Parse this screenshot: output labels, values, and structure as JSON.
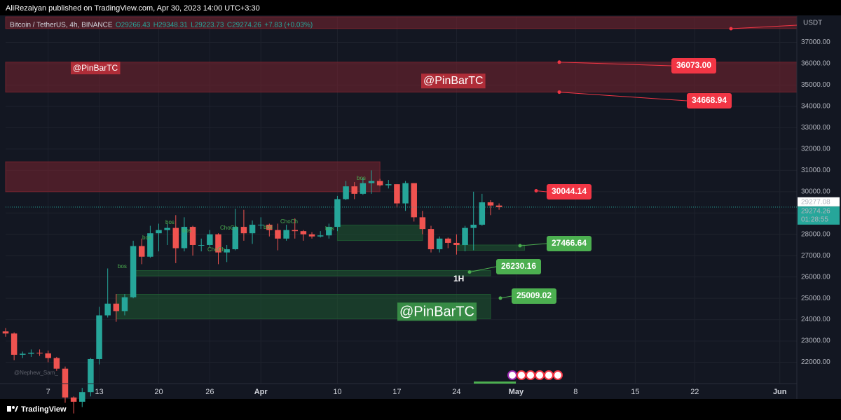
{
  "chart_data": {
    "type": "candlestick",
    "published": "AliRezaiyan published on TradingView.com, Apr 30, 2023 14:00 UTC+3:30",
    "symbol": "Bitcoin / TetherUS, 4h, BINANCE",
    "ohlc_text": [
      "O29266.43",
      "H29348.31",
      "L29223.73",
      "C29274.26",
      "+7.83 (+0.03%)"
    ],
    "currency": "USDT",
    "brand": "TradingView",
    "author_mark": "@Nephew_Sam_",
    "watermarks": [
      "@PinBarTC",
      "@PinBarTC",
      "@PinBarTC"
    ],
    "timeframe_note": "1H",
    "structure_labels": [
      "bos",
      "bos",
      "bos",
      "bos",
      "ChoCh",
      "ChoCh",
      "ChoCh",
      "bos",
      "bos",
      "bos"
    ],
    "up_color": "#26a69a",
    "down_color": "#ef5350",
    "grid": true,
    "xlim": [
      "2023-03-02",
      "2023-06-03"
    ],
    "ylim": [
      21000,
      38200
    ],
    "xticks": [
      {
        "value": "2023-03-07",
        "label": "7"
      },
      {
        "value": "2023-03-13",
        "label": "13"
      },
      {
        "value": "2023-03-20",
        "label": "20"
      },
      {
        "value": "2023-03-26",
        "label": "26"
      },
      {
        "value": "2023-04-01",
        "label": "Apr"
      },
      {
        "value": "2023-04-10",
        "label": "10"
      },
      {
        "value": "2023-04-17",
        "label": "17"
      },
      {
        "value": "2023-04-24",
        "label": "24"
      },
      {
        "value": "2023-05-01",
        "label": "May"
      },
      {
        "value": "2023-05-08",
        "label": "8"
      },
      {
        "value": "2023-05-15",
        "label": "15"
      },
      {
        "value": "2023-05-22",
        "label": "22"
      },
      {
        "value": "2023-06-01",
        "label": "Jun"
      }
    ],
    "yticks": [
      {
        "value": 22000,
        "label": "22000.00"
      },
      {
        "value": 23000,
        "label": "23000.00"
      },
      {
        "value": 24000,
        "label": "24000.00"
      },
      {
        "value": 25000,
        "label": "25000.00"
      },
      {
        "value": 26000,
        "label": "26000.00"
      },
      {
        "value": 27000,
        "label": "27000.00"
      },
      {
        "value": 28000,
        "label": "28000.00"
      },
      {
        "value": 29000,
        "label": "29000.00"
      },
      {
        "value": 30000,
        "label": "30000.00"
      },
      {
        "value": 31000,
        "label": "31000.00"
      },
      {
        "value": 32000,
        "label": "32000.00"
      },
      {
        "value": 33000,
        "label": "33000.00"
      },
      {
        "value": 34000,
        "label": "34000.00"
      },
      {
        "value": 35000,
        "label": "35000.00"
      },
      {
        "value": 36000,
        "label": "36000.00"
      },
      {
        "value": 37000,
        "label": "37000.00"
      }
    ],
    "x": [
      "2023-03-02",
      "2023-03-03",
      "2023-03-04",
      "2023-03-05",
      "2023-03-06",
      "2023-03-07",
      "2023-03-08",
      "2023-03-09",
      "2023-03-10",
      "2023-03-11",
      "2023-03-12",
      "2023-03-13",
      "2023-03-14",
      "2023-03-15",
      "2023-03-16",
      "2023-03-17",
      "2023-03-18",
      "2023-03-19",
      "2023-03-20",
      "2023-03-21",
      "2023-03-22",
      "2023-03-23",
      "2023-03-24",
      "2023-03-25",
      "2023-03-26",
      "2023-03-27",
      "2023-03-28",
      "2023-03-29",
      "2023-03-30",
      "2023-03-31",
      "2023-04-01",
      "2023-04-02",
      "2023-04-03",
      "2023-04-04",
      "2023-04-05",
      "2023-04-06",
      "2023-04-07",
      "2023-04-08",
      "2023-04-09",
      "2023-04-10",
      "2023-04-11",
      "2023-04-12",
      "2023-04-13",
      "2023-04-14",
      "2023-04-15",
      "2023-04-16",
      "2023-04-17",
      "2023-04-18",
      "2023-04-19",
      "2023-04-20",
      "2023-04-21",
      "2023-04-22",
      "2023-04-23",
      "2023-04-24",
      "2023-04-25",
      "2023-04-26",
      "2023-04-27",
      "2023-04-28",
      "2023-04-29"
    ],
    "open": [
      23450,
      23350,
      22350,
      22400,
      22450,
      22420,
      22200,
      21700,
      20350,
      20150,
      20600,
      22150,
      24200,
      24750,
      24400,
      25050,
      27450,
      26950,
      28050,
      28200,
      28300,
      27350,
      28350,
      27500,
      27500,
      28000,
      27150,
      27300,
      28350,
      28050,
      28450,
      28450,
      28200,
      27800,
      28200,
      28150,
      28000,
      27900,
      27950,
      28350,
      29650,
      30250,
      29900,
      30400,
      30500,
      30300,
      30350,
      29450,
      30400,
      28800,
      28250,
      27300,
      27800,
      27600,
      27500,
      28300,
      28450,
      29500,
      29350
    ],
    "high": [
      23600,
      23400,
      22500,
      22600,
      22600,
      22550,
      22250,
      21800,
      20400,
      20800,
      22200,
      24600,
      26400,
      25200,
      25200,
      27700,
      27800,
      28400,
      28500,
      28500,
      28900,
      28800,
      28400,
      27800,
      28200,
      28050,
      27500,
      29200,
      29150,
      28650,
      28800,
      28500,
      28500,
      28450,
      28750,
      28200,
      28100,
      28150,
      28500,
      29800,
      30500,
      30450,
      30650,
      31000,
      30600,
      30550,
      30350,
      30500,
      30400,
      29100,
      28400,
      27900,
      27850,
      28000,
      28400,
      30000,
      29900,
      29600,
      29450
    ],
    "low": [
      23200,
      22100,
      22200,
      22250,
      22300,
      22000,
      21600,
      20100,
      19600,
      19900,
      20400,
      21900,
      24100,
      23900,
      24200,
      25000,
      26600,
      26900,
      27200,
      27500,
      26650,
      27200,
      27000,
      27200,
      27400,
      26600,
      26700,
      27250,
      27700,
      27550,
      28250,
      27900,
      27250,
      27700,
      27800,
      27700,
      27800,
      27850,
      27800,
      28150,
      29600,
      29650,
      29850,
      29900,
      30250,
      30150,
      29250,
      29100,
      28600,
      28000,
      27150,
      27150,
      27350,
      27050,
      27200,
      27250,
      28400,
      28900,
      29150
    ],
    "close": [
      23350,
      22350,
      22400,
      22450,
      22420,
      22200,
      21700,
      20350,
      20150,
      20600,
      22150,
      24200,
      24750,
      24400,
      25050,
      27450,
      26950,
      28050,
      28200,
      28300,
      27350,
      28350,
      27500,
      27500,
      28000,
      27150,
      27300,
      28350,
      28050,
      28450,
      28450,
      28200,
      27800,
      28200,
      28150,
      28000,
      27900,
      27950,
      28350,
      29650,
      30250,
      29900,
      30400,
      30500,
      30300,
      30350,
      29450,
      30400,
      28800,
      28250,
      27300,
      27800,
      27600,
      27500,
      28300,
      28450,
      29500,
      29350,
      29274.26
    ],
    "zones": [
      {
        "from": "2023-03-02",
        "to": "2023-06-03",
        "low": 37650,
        "high": 38200,
        "color": "#7a2530"
      },
      {
        "from": "2023-03-02",
        "to": "2023-06-03",
        "low": 34668.94,
        "high": 36073,
        "color": "#7a2530"
      },
      {
        "from": "2023-03-02",
        "to": "2023-04-15",
        "low": 30000,
        "high": 31400,
        "color": "#7a2530"
      },
      {
        "from": "2023-04-10",
        "to": "2023-04-20",
        "low": 27710,
        "high": 28435,
        "color": "#1f5a32"
      },
      {
        "from": "2023-03-17",
        "to": "2023-04-28",
        "low": 26050,
        "high": 26300,
        "color": "#1f5a32"
      },
      {
        "from": "2023-03-15",
        "to": "2023-04-28",
        "low": 24037,
        "high": 25185,
        "color": "#1f5a32"
      },
      {
        "from": "2023-04-24",
        "to": "2023-05-02",
        "low": 27250,
        "high": 27500,
        "color": "#1f5a32"
      }
    ],
    "levels": [
      {
        "value": 36073,
        "label": "36073.00",
        "color": "#f23645"
      },
      {
        "value": 34668.94,
        "label": "34668.94",
        "color": "#f23645"
      },
      {
        "value": 30044.14,
        "label": "30044.14",
        "color": "#f23645"
      },
      {
        "value": 27466.64,
        "label": "27466.64",
        "color": "#4caf50"
      },
      {
        "value": 26230.16,
        "label": "26230.16",
        "color": "#4caf50"
      },
      {
        "value": 25009.02,
        "label": "25009.02",
        "color": "#4caf50"
      }
    ],
    "prev_close": {
      "value": 29277.08,
      "label": "29277.08"
    },
    "last_price": {
      "value": 29274.26,
      "label": "29274.26",
      "countdown": "01:28:55"
    }
  }
}
